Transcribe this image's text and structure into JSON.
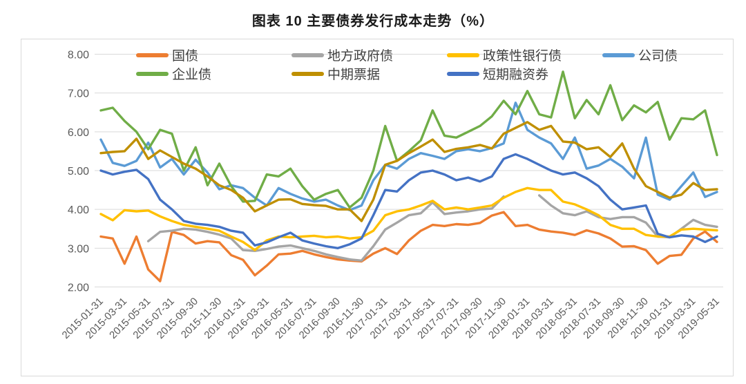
{
  "title": "图表 10 主要债券发行成本走势（%）",
  "chart_data": {
    "type": "line",
    "title": "图表 10 主要债券发行成本走势（%）",
    "legend_position": "top",
    "grid": true,
    "y_axis": {
      "min": 2,
      "max": 8,
      "tick_labels": [
        "8.00",
        "7.00",
        "6.00",
        "5.00",
        "4.00",
        "3.00",
        "2.00"
      ]
    },
    "x_axis": {
      "n_points": 53,
      "label_every_n_points": 2,
      "tick_labels": [
        "2015-01-31",
        "2015-03-31",
        "2015-05-31",
        "2015-07-31",
        "2015-09-30",
        "2015-11-30",
        "2016-01-31",
        "2016-03-31",
        "2016-05-31",
        "2016-07-31",
        "2016-09-30",
        "2016-11-30",
        "2017-01-31",
        "2017-03-31",
        "2017-05-31",
        "2017-07-31",
        "2017-09-30",
        "2017-11-30",
        "2018-01-31",
        "2018-03-31",
        "2018-05-31",
        "2018-07-31",
        "2018-09-30",
        "2018-11-30",
        "2019-01-31",
        "2019-03-31",
        "2019-05-31"
      ]
    },
    "series": [
      {
        "id": "treasury-bond",
        "name": "国债",
        "color": "#ED7D31",
        "values": [
          3.3,
          3.25,
          2.6,
          3.3,
          2.45,
          2.15,
          3.42,
          3.34,
          3.12,
          3.18,
          3.15,
          2.82,
          2.7,
          2.3,
          2.55,
          2.84,
          2.86,
          2.93,
          2.84,
          2.77,
          2.71,
          2.68,
          2.66,
          2.86,
          3.0,
          2.85,
          3.2,
          3.45,
          3.6,
          3.57,
          3.62,
          3.6,
          3.65,
          3.84,
          3.93,
          3.57,
          3.6,
          3.48,
          3.43,
          3.4,
          3.34,
          3.46,
          3.38,
          3.25,
          3.04,
          3.05,
          2.95,
          2.6,
          2.8,
          2.83,
          3.25,
          3.43,
          3.16
        ]
      },
      {
        "id": "local-government-bond",
        "name": "地方政府债",
        "color": "#A5A5A5",
        "values": [
          null,
          null,
          null,
          null,
          3.18,
          3.42,
          3.45,
          3.5,
          3.48,
          3.42,
          3.35,
          3.25,
          2.95,
          2.93,
          2.98,
          3.04,
          3.07,
          3.0,
          2.93,
          2.84,
          2.77,
          2.71,
          2.68,
          3.05,
          3.48,
          3.66,
          3.85,
          3.9,
          4.18,
          3.88,
          3.92,
          3.95,
          4.0,
          4.02,
          4.33,
          null,
          null,
          4.36,
          4.1,
          3.9,
          3.85,
          3.95,
          3.8,
          3.75,
          3.8,
          3.8,
          3.66,
          3.3,
          3.28,
          3.5,
          3.73,
          3.6,
          3.55
        ]
      },
      {
        "id": "policy-bank-bond",
        "name": "政策性银行债",
        "color": "#FFC000",
        "values": [
          3.88,
          3.72,
          3.98,
          3.95,
          3.97,
          3.82,
          3.7,
          3.6,
          3.55,
          3.5,
          3.45,
          3.3,
          3.16,
          2.95,
          3.2,
          3.3,
          3.28,
          3.3,
          3.32,
          3.28,
          3.3,
          3.25,
          3.28,
          3.45,
          3.85,
          3.95,
          4.0,
          4.1,
          4.22,
          4.0,
          4.05,
          4.0,
          4.05,
          4.1,
          4.3,
          4.45,
          4.55,
          4.5,
          4.5,
          4.2,
          4.13,
          4.0,
          3.85,
          3.6,
          3.5,
          3.5,
          3.34,
          3.3,
          3.3,
          3.48,
          3.5,
          3.48,
          3.46
        ]
      },
      {
        "id": "corporate-bond",
        "name": "公司债",
        "color": "#5B9BD5",
        "values": [
          5.8,
          5.2,
          5.12,
          5.25,
          5.72,
          5.08,
          5.3,
          4.9,
          5.28,
          4.95,
          4.52,
          4.62,
          4.55,
          4.3,
          4.1,
          4.55,
          4.4,
          4.28,
          4.2,
          4.25,
          4.1,
          3.98,
          4.1,
          4.75,
          5.15,
          5.05,
          5.3,
          5.45,
          5.38,
          5.3,
          5.5,
          5.55,
          5.5,
          5.58,
          5.7,
          6.75,
          6.05,
          5.85,
          5.7,
          5.3,
          5.85,
          5.05,
          5.13,
          5.3,
          5.1,
          4.8,
          5.85,
          4.38,
          4.25,
          4.6,
          4.95,
          4.32,
          4.45
        ]
      },
      {
        "id": "enterprise-bond",
        "name": "企业债",
        "color": "#70AD47",
        "values": [
          6.55,
          6.62,
          6.28,
          6.0,
          5.55,
          6.05,
          5.95,
          5.0,
          5.6,
          4.62,
          5.18,
          4.6,
          4.2,
          4.22,
          4.9,
          4.85,
          5.05,
          4.6,
          4.25,
          4.4,
          4.5,
          4.05,
          4.3,
          5.0,
          6.15,
          5.25,
          5.5,
          5.78,
          6.55,
          5.9,
          5.85,
          6.0,
          6.15,
          6.4,
          6.8,
          6.45,
          7.05,
          6.45,
          6.37,
          7.55,
          6.35,
          6.82,
          6.45,
          7.2,
          6.3,
          6.68,
          6.5,
          6.77,
          5.8,
          6.35,
          6.32,
          6.55,
          5.4
        ]
      },
      {
        "id": "medium-term-note",
        "name": "中期票据",
        "color": "#BF8F00",
        "values": [
          5.45,
          5.48,
          5.5,
          5.82,
          5.3,
          5.52,
          5.35,
          5.18,
          5.05,
          4.85,
          4.62,
          4.5,
          4.3,
          3.95,
          4.1,
          4.25,
          4.26,
          4.14,
          4.11,
          4.09,
          4.0,
          4.0,
          3.7,
          4.25,
          5.15,
          5.25,
          5.45,
          5.62,
          5.8,
          5.48,
          5.56,
          5.6,
          5.66,
          5.57,
          5.95,
          6.1,
          6.25,
          6.05,
          6.15,
          5.75,
          5.72,
          5.55,
          5.6,
          5.35,
          5.7,
          5.05,
          4.6,
          4.45,
          4.3,
          4.38,
          4.68,
          4.5,
          4.52
        ]
      },
      {
        "id": "short-term-financing-bill",
        "name": "短期融资券",
        "color": "#4472C4",
        "values": [
          5.0,
          4.9,
          4.97,
          5.02,
          4.78,
          4.25,
          4.0,
          3.7,
          3.63,
          3.6,
          3.55,
          3.45,
          3.4,
          3.07,
          3.15,
          3.28,
          3.4,
          3.2,
          3.12,
          3.05,
          3.0,
          3.1,
          3.25,
          3.85,
          4.5,
          4.46,
          4.75,
          4.95,
          5.0,
          4.9,
          4.75,
          4.82,
          4.72,
          4.85,
          5.3,
          5.42,
          5.3,
          5.15,
          5.0,
          4.9,
          4.95,
          4.8,
          4.6,
          4.25,
          4.0,
          4.05,
          4.1,
          3.37,
          3.28,
          3.33,
          3.3,
          3.16,
          3.3
        ]
      }
    ]
  }
}
